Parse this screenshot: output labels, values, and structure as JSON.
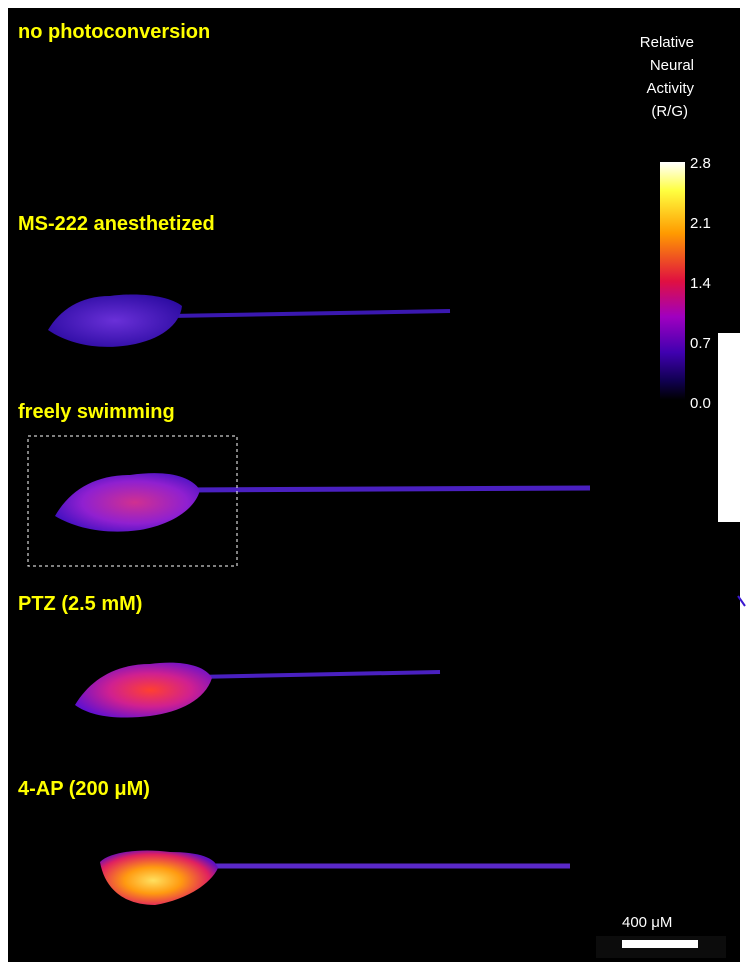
{
  "panels": [
    {
      "label": "no photoconversion"
    },
    {
      "label": "MS-222 anesthetized"
    },
    {
      "label": "freely swimming"
    },
    {
      "label": "PTZ (2.5 mM)"
    },
    {
      "label": "4-AP (200 μM)"
    }
  ],
  "colorbar": {
    "title_lines": [
      "Relative",
      "Neural",
      "Activity",
      "(R/G)"
    ],
    "ticks": [
      "2.8",
      "2.1",
      "1.4",
      "0.7",
      "0.0"
    ]
  },
  "scale_bar": {
    "label": "400 μM"
  }
}
